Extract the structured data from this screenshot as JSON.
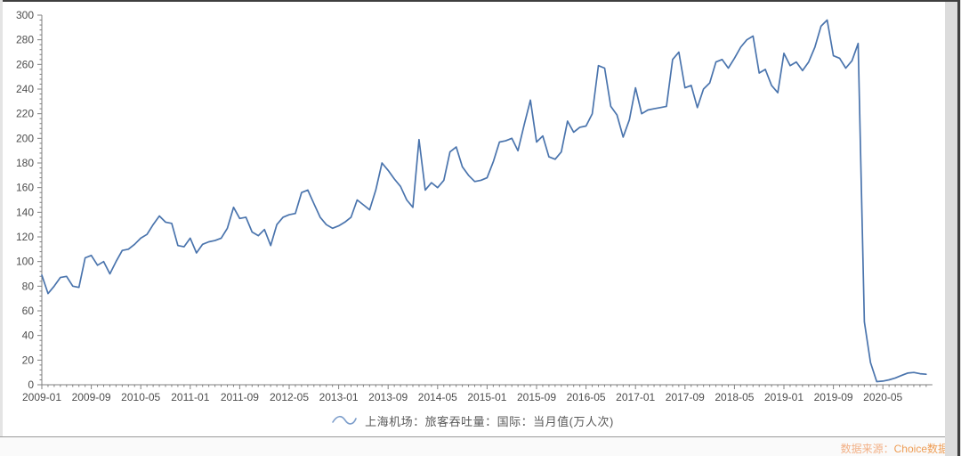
{
  "chart_data": {
    "type": "line",
    "title": "",
    "legend_label": "上海机场：旅客吞吐量：国际：当月值(万人次)",
    "x": [
      "2009-01",
      "2009-02",
      "2009-03",
      "2009-04",
      "2009-05",
      "2009-06",
      "2009-07",
      "2009-08",
      "2009-09",
      "2009-10",
      "2009-11",
      "2009-12",
      "2010-01",
      "2010-02",
      "2010-03",
      "2010-04",
      "2010-05",
      "2010-06",
      "2010-07",
      "2010-08",
      "2010-09",
      "2010-10",
      "2010-11",
      "2010-12",
      "2011-01",
      "2011-02",
      "2011-03",
      "2011-04",
      "2011-05",
      "2011-06",
      "2011-07",
      "2011-08",
      "2011-09",
      "2011-10",
      "2011-11",
      "2011-12",
      "2012-01",
      "2012-02",
      "2012-03",
      "2012-04",
      "2012-05",
      "2012-06",
      "2012-07",
      "2012-08",
      "2012-09",
      "2012-10",
      "2012-11",
      "2012-12",
      "2013-01",
      "2013-02",
      "2013-03",
      "2013-04",
      "2013-05",
      "2013-06",
      "2013-07",
      "2013-08",
      "2013-09",
      "2013-10",
      "2013-11",
      "2013-12",
      "2014-01",
      "2014-02",
      "2014-03",
      "2014-04",
      "2014-05",
      "2014-06",
      "2014-07",
      "2014-08",
      "2014-09",
      "2014-10",
      "2014-11",
      "2014-12",
      "2015-01",
      "2015-02",
      "2015-03",
      "2015-04",
      "2015-05",
      "2015-06",
      "2015-07",
      "2015-08",
      "2015-09",
      "2015-10",
      "2015-11",
      "2015-12",
      "2016-01",
      "2016-02",
      "2016-03",
      "2016-04",
      "2016-05",
      "2016-06",
      "2016-07",
      "2016-08",
      "2016-09",
      "2016-10",
      "2016-11",
      "2016-12",
      "2017-01",
      "2017-02",
      "2017-03",
      "2017-04",
      "2017-05",
      "2017-06",
      "2017-07",
      "2017-08",
      "2017-09",
      "2017-10",
      "2017-11",
      "2017-12",
      "2018-01",
      "2018-02",
      "2018-03",
      "2018-04",
      "2018-05",
      "2018-06",
      "2018-07",
      "2018-08",
      "2018-09",
      "2018-10",
      "2018-11",
      "2018-12",
      "2019-01",
      "2019-02",
      "2019-03",
      "2019-04",
      "2019-05",
      "2019-06",
      "2019-07",
      "2019-08",
      "2019-09",
      "2019-10",
      "2019-11",
      "2019-12",
      "2020-01",
      "2020-02",
      "2020-03",
      "2020-04",
      "2020-05",
      "2020-06",
      "2020-07",
      "2020-08",
      "2020-09",
      "2020-10",
      "2020-11",
      "2020-12"
    ],
    "values": [
      89,
      74,
      80,
      87,
      88,
      80,
      79,
      103,
      105,
      97,
      100,
      90,
      100,
      109,
      110,
      114,
      119,
      122,
      130,
      137,
      132,
      131,
      113,
      112,
      119,
      107,
      114,
      116,
      117,
      119,
      127,
      144,
      135,
      136,
      124,
      121,
      126,
      113,
      130,
      136,
      138,
      139,
      156,
      158,
      147,
      136,
      130,
      127,
      129,
      132,
      136,
      150,
      146,
      142,
      158,
      180,
      174,
      167,
      161,
      150,
      144,
      199,
      158,
      164,
      160,
      166,
      189,
      193,
      177,
      170,
      165,
      166,
      168,
      181,
      197,
      198,
      200,
      190,
      211,
      231,
      197,
      202,
      185,
      183,
      189,
      214,
      205,
      209,
      210,
      220,
      259,
      257,
      226,
      219,
      201,
      215,
      241,
      220,
      223,
      224,
      225,
      226,
      264,
      270,
      241,
      243,
      225,
      240,
      245,
      262,
      264,
      257,
      265,
      274,
      280,
      283,
      253,
      256,
      243,
      237,
      269,
      259,
      262,
      255,
      262,
      274,
      291,
      296,
      267,
      265,
      257,
      263,
      277,
      51,
      18,
      2.5,
      3,
      4,
      5.5,
      7.5,
      9.5,
      10,
      9,
      8.5
    ],
    "ylim": [
      0,
      300
    ],
    "y_tick_labels": [
      "0",
      "20",
      "40",
      "60",
      "80",
      "100",
      "120",
      "140",
      "160",
      "180",
      "200",
      "220",
      "240",
      "260",
      "280",
      "300"
    ],
    "y_major_step": 20,
    "y_minor_step": 4,
    "x_tick_labels": [
      "2009-01",
      "2009-09",
      "2010-05",
      "2011-01",
      "2011-09",
      "2012-05",
      "2013-01",
      "2013-09",
      "2014-05",
      "2015-01",
      "2015-09",
      "2016-05",
      "2017-01",
      "2017-09",
      "2018-05",
      "2019-01",
      "2019-09",
      "2020-05"
    ],
    "x_label_every_n_months": 8,
    "grid": "off",
    "legend_position": "bottom-center"
  },
  "legend": {
    "label": "上海机场：旅客吞吐量：国际：当月值(万人次)"
  },
  "footer": {
    "source_prefix": "数据来源：",
    "source_name": "Choice数据"
  },
  "colors": {
    "line": "#4a74ad",
    "legend_icon": "#7d9ecb",
    "axis": "#7f7f7f",
    "tick_label": "#4d4d4d",
    "source_prefix": "#f2b086",
    "source_name": "#ee9d55"
  }
}
